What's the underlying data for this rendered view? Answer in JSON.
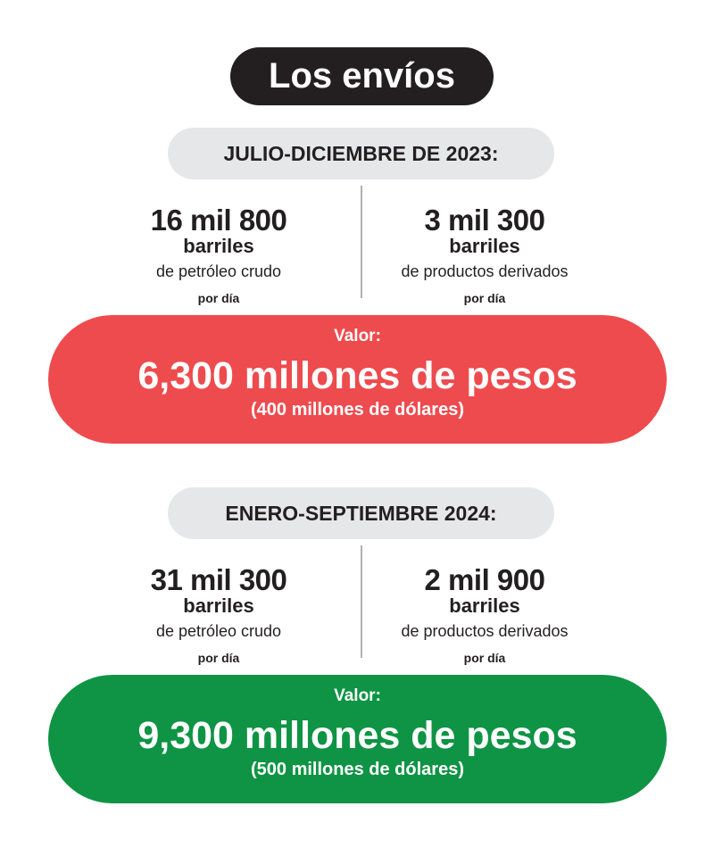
{
  "title": "Los envíos",
  "colors": {
    "title_bg": "#231f20",
    "period_bg": "#e6e7e8",
    "value_2023": "#ee4b4e",
    "value_2024": "#0e9444"
  },
  "sections": [
    {
      "period": "JULIO-DICIEMBRE DE 2023:",
      "crude": {
        "amount": "16 mil 800",
        "unit": "barriles",
        "desc": "de petróleo crudo",
        "per": "por día"
      },
      "derived": {
        "amount": "3 mil 300",
        "unit": "barriles",
        "desc": "de productos derivados",
        "per": "por día"
      },
      "value": {
        "label": "Valor:",
        "pesos": "6,300 millones de pesos",
        "dollars": "(400 millones de dólares)"
      }
    },
    {
      "period": "ENERO-SEPTIEMBRE 2024:",
      "crude": {
        "amount": "31 mil 300",
        "unit": "barriles",
        "desc": "de petróleo crudo",
        "per": "por día"
      },
      "derived": {
        "amount": "2 mil 900",
        "unit": "barriles",
        "desc": "de productos derivados",
        "per": "por día"
      },
      "value": {
        "label": "Valor:",
        "pesos": "9,300 millones de pesos",
        "dollars": "(500 millones de dólares)"
      }
    }
  ]
}
